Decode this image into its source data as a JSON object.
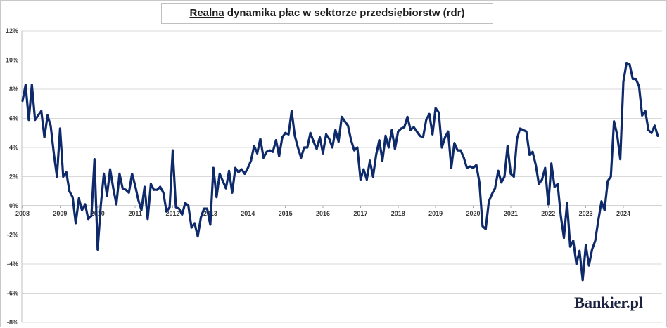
{
  "chart_data": {
    "type": "line",
    "title": {
      "underlined": "Realna",
      "rest": "dynamika płac w sektorze przedsiębiorstw (rdr)"
    },
    "ylim": [
      -8,
      12
    ],
    "y_tick_values": [
      12,
      10,
      8,
      6,
      4,
      2,
      0,
      -2,
      -4,
      -6,
      -8
    ],
    "y_tick_labels": [
      "12%",
      "10%",
      "8%",
      "6%",
      "4%",
      "2%",
      "0%",
      "-2%",
      "-4%",
      "-6%",
      "-8%"
    ],
    "x_tick_labels": [
      "2008",
      "2009",
      "2010",
      "2011",
      "2012",
      "2013",
      "2014",
      "2015",
      "2016",
      "2017",
      "2018",
      "2019",
      "2020",
      "2021",
      "2022",
      "2023",
      "2024"
    ],
    "grid": true,
    "x": [
      "2008-01",
      "2008-02",
      "2008-03",
      "2008-04",
      "2008-05",
      "2008-06",
      "2008-07",
      "2008-08",
      "2008-09",
      "2008-10",
      "2008-11",
      "2008-12",
      "2009-01",
      "2009-02",
      "2009-03",
      "2009-04",
      "2009-05",
      "2009-06",
      "2009-07",
      "2009-08",
      "2009-09",
      "2009-10",
      "2009-11",
      "2009-12",
      "2010-01",
      "2010-02",
      "2010-03",
      "2010-04",
      "2010-05",
      "2010-06",
      "2010-07",
      "2010-08",
      "2010-09",
      "2010-10",
      "2010-11",
      "2010-12",
      "2011-01",
      "2011-02",
      "2011-03",
      "2011-04",
      "2011-05",
      "2011-06",
      "2011-07",
      "2011-08",
      "2011-09",
      "2011-10",
      "2011-11",
      "2011-12",
      "2012-01",
      "2012-02",
      "2012-03",
      "2012-04",
      "2012-05",
      "2012-06",
      "2012-07",
      "2012-08",
      "2012-09",
      "2012-10",
      "2012-11",
      "2012-12",
      "2013-01",
      "2013-02",
      "2013-03",
      "2013-04",
      "2013-05",
      "2013-06",
      "2013-07",
      "2013-08",
      "2013-09",
      "2013-10",
      "2013-11",
      "2013-12",
      "2014-01",
      "2014-02",
      "2014-03",
      "2014-04",
      "2014-05",
      "2014-06",
      "2014-07",
      "2014-08",
      "2014-09",
      "2014-10",
      "2014-11",
      "2014-12",
      "2015-01",
      "2015-02",
      "2015-03",
      "2015-04",
      "2015-05",
      "2015-06",
      "2015-07",
      "2015-08",
      "2015-09",
      "2015-10",
      "2015-11",
      "2015-12",
      "2016-01",
      "2016-02",
      "2016-03",
      "2016-04",
      "2016-05",
      "2016-06",
      "2016-07",
      "2016-08",
      "2016-09",
      "2016-10",
      "2016-11",
      "2016-12",
      "2017-01",
      "2017-02",
      "2017-03",
      "2017-04",
      "2017-05",
      "2017-06",
      "2017-07",
      "2017-08",
      "2017-09",
      "2017-10",
      "2017-11",
      "2017-12",
      "2018-01",
      "2018-02",
      "2018-03",
      "2018-04",
      "2018-05",
      "2018-06",
      "2018-07",
      "2018-08",
      "2018-09",
      "2018-10",
      "2018-11",
      "2018-12",
      "2019-01",
      "2019-02",
      "2019-03",
      "2019-04",
      "2019-05",
      "2019-06",
      "2019-07",
      "2019-08",
      "2019-09",
      "2019-10",
      "2019-11",
      "2019-12",
      "2020-01",
      "2020-02",
      "2020-03",
      "2020-04",
      "2020-05",
      "2020-06",
      "2020-07",
      "2020-08",
      "2020-09",
      "2020-10",
      "2020-11",
      "2020-12",
      "2021-01",
      "2021-02",
      "2021-03",
      "2021-04",
      "2021-05",
      "2021-06",
      "2021-07",
      "2021-08",
      "2021-09",
      "2021-10",
      "2021-11",
      "2021-12",
      "2022-01",
      "2022-02",
      "2022-03",
      "2022-04",
      "2022-05",
      "2022-06",
      "2022-07",
      "2022-08",
      "2022-09",
      "2022-10",
      "2022-11",
      "2022-12",
      "2023-01",
      "2023-02",
      "2023-03",
      "2023-04",
      "2023-05",
      "2023-06",
      "2023-07",
      "2023-08",
      "2023-09",
      "2023-10",
      "2023-11",
      "2023-12",
      "2024-01",
      "2024-02",
      "2024-03",
      "2024-04",
      "2024-05",
      "2024-06",
      "2024-07",
      "2024-08",
      "2024-09",
      "2024-10",
      "2024-11",
      "2024-12"
    ],
    "series": [
      {
        "color": "#0e2a6b",
        "values": [
          7.2,
          8.3,
          5.9,
          8.3,
          5.9,
          6.2,
          6.5,
          4.7,
          6.2,
          5.5,
          3.6,
          2.0,
          5.3,
          2.0,
          2.3,
          1.0,
          0.6,
          -1.2,
          0.5,
          -0.3,
          0.1,
          -0.9,
          -0.7,
          3.2,
          -3.0,
          0.0,
          2.2,
          0.7,
          2.5,
          1.2,
          0.1,
          2.2,
          1.2,
          1.1,
          0.9,
          2.2,
          1.4,
          0.4,
          -0.3,
          1.3,
          -0.9,
          1.5,
          1.1,
          1.1,
          1.3,
          0.9,
          -0.4,
          -0.1,
          3.8,
          -0.1,
          -0.2,
          -0.6,
          0.2,
          0.0,
          -1.5,
          -1.2,
          -2.1,
          -0.8,
          -0.2,
          -0.2,
          -1.3,
          2.6,
          0.6,
          2.2,
          1.7,
          1.2,
          2.4,
          0.9,
          2.6,
          2.3,
          2.5,
          2.2,
          2.6,
          3.1,
          4.1,
          3.6,
          4.6,
          3.3,
          3.7,
          3.8,
          3.7,
          4.5,
          3.4,
          4.7,
          5.0,
          4.9,
          6.5,
          4.8,
          4.0,
          3.3,
          4.0,
          4.0,
          5.0,
          4.4,
          3.9,
          4.7,
          3.6,
          4.9,
          4.6,
          4.0,
          5.2,
          4.4,
          6.1,
          5.8,
          5.5,
          4.5,
          3.8,
          4.0,
          1.8,
          2.5,
          1.8,
          3.1,
          2.0,
          3.5,
          4.5,
          3.1,
          4.8,
          4.0,
          5.2,
          3.9,
          5.1,
          5.3,
          5.4,
          6.1,
          5.2,
          5.4,
          5.1,
          4.8,
          4.7,
          5.9,
          6.3,
          4.9,
          6.7,
          6.4,
          4.0,
          4.7,
          5.1,
          2.6,
          4.3,
          3.8,
          3.8,
          3.3,
          2.6,
          2.7,
          2.6,
          2.8,
          1.6,
          -1.4,
          -1.6,
          0.3,
          0.8,
          1.2,
          2.4,
          1.6,
          2.0,
          4.1,
          2.2,
          2.0,
          4.6,
          5.3,
          5.2,
          5.1,
          3.5,
          3.7,
          2.8,
          1.5,
          1.8,
          2.6,
          0.1,
          2.9,
          1.3,
          1.5,
          -0.7,
          -2.2,
          0.2,
          -2.8,
          -2.4,
          -4.0,
          -3.1,
          -5.1,
          -2.7,
          -4.1,
          -3.0,
          -2.4,
          -1.0,
          0.3,
          -0.3,
          1.7,
          2.0,
          5.8,
          4.9,
          3.2,
          8.5,
          9.8,
          9.7,
          8.7,
          8.7,
          8.2,
          6.2,
          6.5,
          5.2,
          5.0,
          5.5,
          4.8
        ]
      }
    ]
  },
  "logo": {
    "text": "Bankier.pl"
  }
}
